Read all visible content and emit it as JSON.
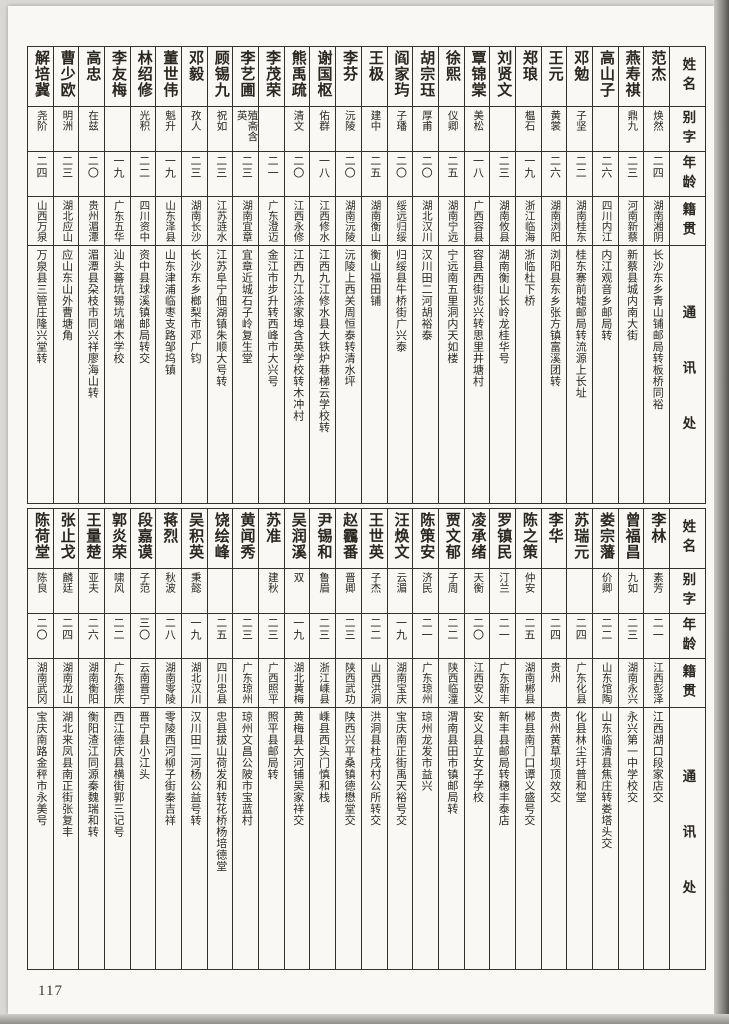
{
  "page": {
    "number": "117"
  },
  "colors": {
    "ink": "#2a2720",
    "paper": "#f9f8f4",
    "margin": "#d9d8d4"
  },
  "headers": {
    "name": "姓名",
    "courtesy": "别字",
    "age": "年龄",
    "native_place": "籍贯",
    "address": "通讯处"
  },
  "sections": [
    {
      "entries": [
        {
          "name": "范杰",
          "courtesy": "焕然",
          "age": "二四",
          "native": "湖南湘阴",
          "address": "长沙东乡青山铺邮局转板桥同裕"
        },
        {
          "name": "燕寿祺",
          "courtesy": "鼎九",
          "age": "二三",
          "native": "河南新蔡",
          "address": "新蔡县城内南大街"
        },
        {
          "name": "高山子",
          "courtesy": "",
          "age": "二六",
          "native": "四川内江",
          "address": "内江观音乡邮局转"
        },
        {
          "name": "邓勉",
          "courtesy": "子坚",
          "age": "二二",
          "native": "湖南桂东",
          "address": "桂东寨前墟邮局转流源上长址"
        },
        {
          "name": "王元",
          "courtesy": "黄裳",
          "age": "二六",
          "native": "湖南浏阳",
          "address": "浏阳县东乡张方镇富溪团转"
        },
        {
          "name": "郑琅",
          "courtesy": "榅石",
          "age": "一九",
          "native": "浙江临海",
          "address": "浙临杜下桥"
        },
        {
          "name": "刘贤文",
          "courtesy": "",
          "age": "二三",
          "native": "湖南攸县",
          "address": "湖南衡山长岭龙桂华号"
        },
        {
          "name": "覃锦棠",
          "courtesy": "美松",
          "age": "一八",
          "native": "广西容县",
          "address": "容县西街兆兴转思里井塘村"
        },
        {
          "name": "徐熙",
          "courtesy": "仪卿",
          "age": "二五",
          "native": "湖南宁远",
          "address": "宁远南五里洞内天如楼"
        },
        {
          "name": "胡宗珏",
          "courtesy": "厚甫",
          "age": "二〇",
          "native": "湖北汉川",
          "address": "汉川田二河胡裕泰"
        },
        {
          "name": "阎家玙",
          "courtesy": "子璠",
          "age": "二〇",
          "native": "绥远归绥",
          "address": "归绥县牛桥街广兴泰"
        },
        {
          "name": "王极",
          "courtesy": "建中",
          "age": "二五",
          "native": "湖南衡山",
          "address": "衡山福田铺"
        },
        {
          "name": "李芬",
          "courtesy": "沅陵",
          "age": "二〇",
          "native": "湖南沅陵",
          "address": "沅陵上西关周恒泰转清水坪"
        },
        {
          "name": "谢国枢",
          "courtesy": "佑群",
          "age": "一八",
          "native": "江西修水",
          "address": "江西九江修水县大铁炉巷梯云学校转"
        },
        {
          "name": "熊禹疏",
          "courtesy": "清文",
          "age": "二〇",
          "native": "江西永修",
          "address": "江西九江涂家埠含英学校转木冲村"
        },
        {
          "name": "李茂荣",
          "courtesy": "",
          "age": "二一",
          "native": "广东澄迈",
          "address": "金江市步升转西峰市大兴号"
        },
        {
          "name": "李艺圃",
          "courtesy": "殖斋含英",
          "age": "二三",
          "native": "湖南宜章",
          "address": "宜章近城石子岭复生堂"
        },
        {
          "name": "顾锡九",
          "courtesy": "祝如",
          "age": "二三",
          "native": "江苏涟水",
          "address": "江苏阜宁佃湖镇朱顺大号转"
        },
        {
          "name": "邓毅",
          "courtesy": "孜人",
          "age": "二三",
          "native": "湖南长沙",
          "address": "长沙东乡榔梨市邓广钧"
        },
        {
          "name": "董世伟",
          "courtesy": "魁升",
          "age": "一九",
          "native": "山东泽县",
          "address": "山东津浦临枣支路邹坞镇"
        },
        {
          "name": "林绍修",
          "courtesy": "光积",
          "age": "二二",
          "native": "四川资中",
          "address": "资中县球溪镇邮局转交"
        },
        {
          "name": "李友梅",
          "courtesy": "",
          "age": "一九",
          "native": "广东五华",
          "address": "汕头蕃坑锡坑端木学校"
        },
        {
          "name": "高忠",
          "courtesy": "在兹",
          "age": "二〇",
          "native": "贵州湄潭",
          "address": "湄潭县朶枝市同兴祥廖海山转"
        },
        {
          "name": "曹少欧",
          "courtesy": "明洲",
          "age": "二三",
          "native": "湖北应山",
          "address": "应山东山外曹塘角"
        },
        {
          "name": "解培冀",
          "courtesy": "尧阶",
          "age": "二四",
          "native": "山西万泉",
          "address": "万泉县三管庄隆兴堂转"
        }
      ]
    },
    {
      "entries": [
        {
          "name": "李林",
          "courtesy": "素芳",
          "age": "二一",
          "native": "江西彭泽",
          "address": "江西湖口段家店交"
        },
        {
          "name": "曾福昌",
          "courtesy": "九如",
          "age": "二三",
          "native": "湖南永兴",
          "address": "永兴第一中学校交"
        },
        {
          "name": "娄宗藩",
          "courtesy": "价卿",
          "age": "二二",
          "native": "山东馆陶",
          "address": "山东临清县焦庄转娄塔头交"
        },
        {
          "name": "苏瑞元",
          "courtesy": "",
          "age": "二四",
          "native": "广东化县",
          "address": "化县林尘圩普和堂"
        },
        {
          "name": "李华",
          "courtesy": "",
          "age": "二四",
          "native": "贵州",
          "address": "贵州黄草坝顶效交"
        },
        {
          "name": "陈之策",
          "courtesy": "仲安",
          "age": "二五",
          "native": "湖南郴县",
          "address": "郴县南门口谭义盛号交"
        },
        {
          "name": "罗镇民",
          "courtesy": "汀兰",
          "age": "二一",
          "native": "广东新丰",
          "address": "新丰县邮局转穗丰泰店"
        },
        {
          "name": "凌承绪",
          "courtesy": "天衡",
          "age": "二〇",
          "native": "江西安义",
          "address": "安义县立女子学校"
        },
        {
          "name": "贾文郁",
          "courtesy": "子周",
          "age": "二二",
          "native": "陕西临潼",
          "address": "渭南县田市镇邮局转"
        },
        {
          "name": "陈策安",
          "courtesy": "济民",
          "age": "二一",
          "native": "广东琼州",
          "address": "琼州龙发市益兴"
        },
        {
          "name": "汪焕文",
          "courtesy": "云湄",
          "age": "一九",
          "native": "湖南宝庆",
          "address": "宝庆南正街禹天裕号交"
        },
        {
          "name": "王世英",
          "courtesy": "子杰",
          "age": "二二",
          "native": "山西洪洞",
          "address": "洪洞县杜戌村公所转交"
        },
        {
          "name": "赵靏番",
          "courtesy": "晋卿",
          "age": "二三",
          "native": "陕西武功",
          "address": "陕西兴平桑镇德懋堂交"
        },
        {
          "name": "尹锡和",
          "courtesy": "鲁眉",
          "age": "二三",
          "native": "浙江嵊县",
          "address": "嵊县西头门慎和栈"
        },
        {
          "name": "吴润溪",
          "courtesy": "双",
          "age": "一九",
          "native": "湖北黄梅",
          "address": "黄梅县大河铺吴家祥交"
        },
        {
          "name": "苏准",
          "courtesy": "建秋",
          "age": "二三",
          "native": "广西照平",
          "address": "照平县邮局转"
        },
        {
          "name": "黄闻秀",
          "courtesy": "",
          "age": "二三",
          "native": "广东琼州",
          "address": "琼州文昌公陂市宝蓝村"
        },
        {
          "name": "饶绘峰",
          "courtesy": "",
          "age": "二五",
          "native": "四川忠县",
          "address": "忠县拔山荷发和转花桥杨培德堂"
        },
        {
          "name": "吴积英",
          "courtesy": "秉懿",
          "age": "一九",
          "native": "湖北汉川",
          "address": "汉川田二河杨公益号转"
        },
        {
          "name": "蒋烈",
          "courtesy": "秋波",
          "age": "二八",
          "native": "湖南零陵",
          "address": "零陵西河柳子街秦吉祥"
        },
        {
          "name": "段嘉谟",
          "courtesy": "子范",
          "age": "三〇",
          "native": "云南晋宁",
          "address": "晋宁县小江头"
        },
        {
          "name": "郭炎荣",
          "courtesy": "啸风",
          "age": "二二",
          "native": "广东德庆",
          "address": "西江德庆县横街郭三记号"
        },
        {
          "name": "王量楚",
          "courtesy": "亚夫",
          "age": "二六",
          "native": "湖南衡阳",
          "address": "衡阳渣江同源秦魏瑞和转"
        },
        {
          "name": "张止戈",
          "courtesy": "麟廷",
          "age": "二四",
          "native": "湖南龙山",
          "address": "湖北来凤县南正街张复丰"
        },
        {
          "name": "陈荷堂",
          "courtesy": "陈良",
          "age": "二〇",
          "native": "湖南武冈",
          "address": "宝庆南路金秤市永美号"
        }
      ]
    }
  ]
}
